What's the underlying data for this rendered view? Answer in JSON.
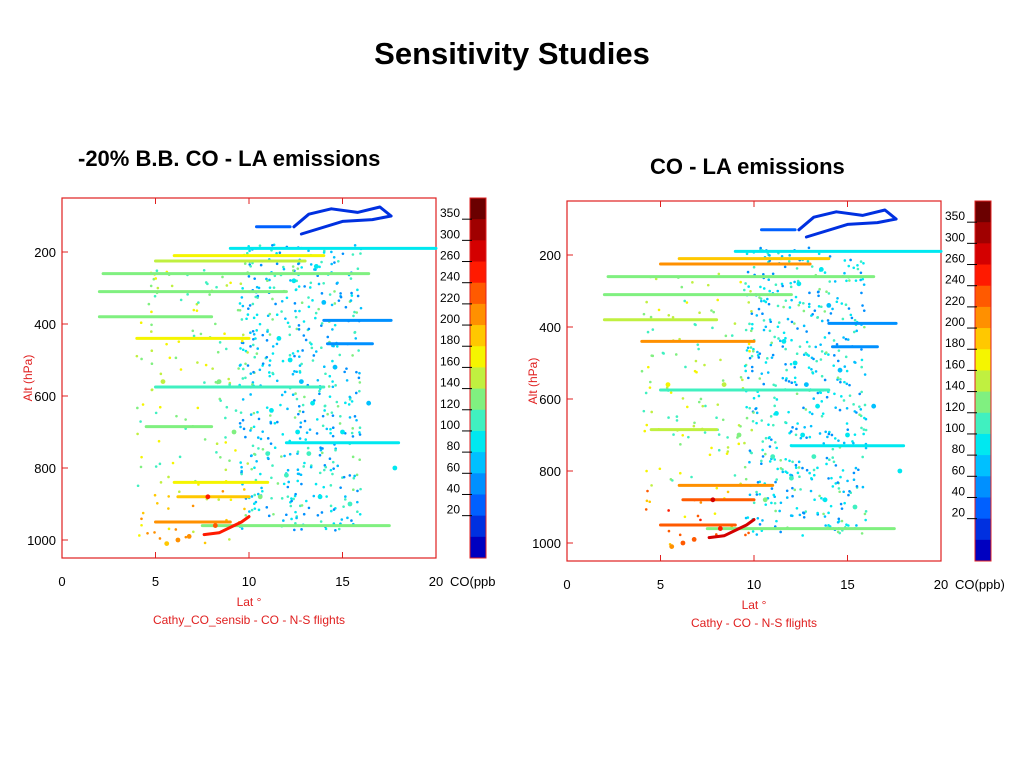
{
  "slide": {
    "title": "Sensitivity Studies"
  },
  "colors": {
    "axis": "#e02020",
    "ink": "#000000"
  },
  "colorbar": {
    "labels": [
      "350",
      "300",
      "260",
      "240",
      "220",
      "200",
      "180",
      "160",
      "140",
      "120",
      "100",
      "80",
      "60",
      "40",
      "20"
    ],
    "bands": [
      "#6b0000",
      "#a00000",
      "#d40000",
      "#ff1a00",
      "#ff5a00",
      "#ff9000",
      "#ffc800",
      "#f5f500",
      "#c0f040",
      "#80f080",
      "#40f0c0",
      "#00e8f0",
      "#00c0ff",
      "#0090ff",
      "#0060ff",
      "#0030e0",
      "#0000c0"
    ]
  },
  "chart_data": [
    {
      "type": "scatter",
      "panel_title": "-20% B.B. CO - LA emissions",
      "xlabel": "Lat °",
      "ylabel": "Alt (hPa)",
      "caption": "Cathy_CO_sensib - CO  -   N-S flights",
      "colorbar_title": "CO(ppb",
      "x_range": [
        0,
        20
      ],
      "y_range": [
        1050,
        50
      ],
      "x_ticks": [
        0,
        5,
        10,
        15,
        20
      ],
      "y_ticks": [
        200,
        400,
        600,
        800,
        1000
      ],
      "z_ticks": [
        20,
        40,
        60,
        80,
        100,
        120,
        140,
        160,
        180,
        200,
        220,
        240,
        260,
        300,
        350
      ],
      "segments": [
        {
          "x": [
            12.4,
            13.2,
            14.4,
            15.8,
            17.0,
            17.6,
            16.6,
            15.0,
            12.8
          ],
          "y": [
            130,
            95,
            80,
            90,
            75,
            100,
            110,
            115,
            150
          ],
          "co": 20
        },
        {
          "x": [
            10.4,
            12.2
          ],
          "y": [
            130,
            130
          ],
          "co": 40
        },
        {
          "x": [
            9.0,
            20.0
          ],
          "y": [
            190,
            190
          ],
          "co": 100
        },
        {
          "x": [
            6.0,
            14.0
          ],
          "y": [
            210,
            210
          ],
          "co": 190
        },
        {
          "x": [
            5.0,
            13.0
          ],
          "y": [
            225,
            225
          ],
          "co": 160
        },
        {
          "x": [
            2.2,
            16.4
          ],
          "y": [
            260,
            260
          ],
          "co": 140
        },
        {
          "x": [
            2.0,
            12.0
          ],
          "y": [
            310,
            310
          ],
          "co": 140
        },
        {
          "x": [
            2.0,
            8.0
          ],
          "y": [
            380,
            380
          ],
          "co": 150
        },
        {
          "x": [
            14.0,
            17.6
          ],
          "y": [
            390,
            390
          ],
          "co": 60
        },
        {
          "x": [
            4.0,
            10.0
          ],
          "y": [
            440,
            440
          ],
          "co": 195
        },
        {
          "x": [
            14.2,
            16.6
          ],
          "y": [
            455,
            455
          ],
          "co": 60
        },
        {
          "x": [
            5.0,
            14.0
          ],
          "y": [
            575,
            575
          ],
          "co": 120
        },
        {
          "x": [
            4.5,
            8.0
          ],
          "y": [
            685,
            685
          ],
          "co": 150
        },
        {
          "x": [
            12.0,
            18.0
          ],
          "y": [
            730,
            730
          ],
          "co": 100
        },
        {
          "x": [
            6.0,
            11.0
          ],
          "y": [
            840,
            840
          ],
          "co": 190
        },
        {
          "x": [
            6.2,
            10.0
          ],
          "y": [
            880,
            880
          ],
          "co": 200
        },
        {
          "x": [
            5.0,
            9.0
          ],
          "y": [
            950,
            950
          ],
          "co": 220
        },
        {
          "x": [
            7.5,
            17.5
          ],
          "y": [
            960,
            960
          ],
          "co": 150
        },
        {
          "x": [
            7.6,
            8.4,
            9.0,
            9.6,
            10.0
          ],
          "y": [
            985,
            980,
            965,
            950,
            935
          ],
          "co": 260
        }
      ],
      "points": [
        {
          "x": 12.2,
          "y": 500,
          "co": 100
        },
        {
          "x": 12.8,
          "y": 560,
          "co": 90
        },
        {
          "x": 13.4,
          "y": 620,
          "co": 110
        },
        {
          "x": 12.6,
          "y": 700,
          "co": 100
        },
        {
          "x": 13.2,
          "y": 760,
          "co": 120
        },
        {
          "x": 12.0,
          "y": 820,
          "co": 120
        },
        {
          "x": 13.8,
          "y": 880,
          "co": 100
        },
        {
          "x": 11.6,
          "y": 440,
          "co": 100
        },
        {
          "x": 14.0,
          "y": 340,
          "co": 90
        },
        {
          "x": 12.4,
          "y": 280,
          "co": 100
        },
        {
          "x": 13.6,
          "y": 240,
          "co": 100
        },
        {
          "x": 14.6,
          "y": 520,
          "co": 80
        },
        {
          "x": 11.2,
          "y": 640,
          "co": 110
        },
        {
          "x": 11.0,
          "y": 760,
          "co": 130
        },
        {
          "x": 10.6,
          "y": 880,
          "co": 140
        },
        {
          "x": 6.2,
          "y": 1000,
          "co": 220
        },
        {
          "x": 5.6,
          "y": 1010,
          "co": 210
        },
        {
          "x": 6.8,
          "y": 990,
          "co": 220
        },
        {
          "x": 7.8,
          "y": 880,
          "co": 260
        },
        {
          "x": 8.2,
          "y": 960,
          "co": 240
        },
        {
          "x": 9.2,
          "y": 700,
          "co": 140
        },
        {
          "x": 8.4,
          "y": 560,
          "co": 150
        },
        {
          "x": 5.4,
          "y": 560,
          "co": 160
        },
        {
          "x": 16.4,
          "y": 620,
          "co": 90
        },
        {
          "x": 17.8,
          "y": 800,
          "co": 100
        },
        {
          "x": 15.4,
          "y": 900,
          "co": 120
        },
        {
          "x": 15.0,
          "y": 700,
          "co": 100
        }
      ]
    },
    {
      "type": "scatter",
      "panel_title": "CO - LA emissions",
      "xlabel": "Lat °",
      "ylabel": "Alt (hPa)",
      "caption": "Cathy - CO  -   N-S flights",
      "colorbar_title": "CO(ppb)",
      "x_range": [
        0,
        20
      ],
      "y_range": [
        1050,
        50
      ],
      "x_ticks": [
        0,
        5,
        10,
        15,
        20
      ],
      "y_ticks": [
        200,
        400,
        600,
        800,
        1000
      ],
      "z_ticks": [
        20,
        40,
        60,
        80,
        100,
        120,
        140,
        160,
        180,
        200,
        220,
        240,
        260,
        300,
        350
      ],
      "segments": [
        {
          "x": [
            12.4,
            13.2,
            14.4,
            15.8,
            17.0,
            17.6,
            16.6,
            15.0,
            12.8
          ],
          "y": [
            130,
            95,
            80,
            90,
            75,
            100,
            110,
            115,
            150
          ],
          "co": 20
        },
        {
          "x": [
            10.4,
            12.2
          ],
          "y": [
            130,
            130
          ],
          "co": 40
        },
        {
          "x": [
            9.0,
            20.0
          ],
          "y": [
            190,
            190
          ],
          "co": 100
        },
        {
          "x": [
            6.0,
            14.0
          ],
          "y": [
            210,
            210
          ],
          "co": 210
        },
        {
          "x": [
            5.0,
            13.0
          ],
          "y": [
            225,
            225
          ],
          "co": 230
        },
        {
          "x": [
            2.2,
            16.4
          ],
          "y": [
            260,
            260
          ],
          "co": 150
        },
        {
          "x": [
            2.0,
            12.0
          ],
          "y": [
            310,
            310
          ],
          "co": 150
        },
        {
          "x": [
            2.0,
            8.0
          ],
          "y": [
            380,
            380
          ],
          "co": 160
        },
        {
          "x": [
            14.0,
            17.6
          ],
          "y": [
            390,
            390
          ],
          "co": 60
        },
        {
          "x": [
            4.0,
            10.0
          ],
          "y": [
            440,
            440
          ],
          "co": 225
        },
        {
          "x": [
            14.2,
            16.6
          ],
          "y": [
            455,
            455
          ],
          "co": 60
        },
        {
          "x": [
            5.0,
            14.0
          ],
          "y": [
            575,
            575
          ],
          "co": 120
        },
        {
          "x": [
            4.5,
            8.0
          ],
          "y": [
            685,
            685
          ],
          "co": 160
        },
        {
          "x": [
            12.0,
            18.0
          ],
          "y": [
            730,
            730
          ],
          "co": 100
        },
        {
          "x": [
            6.0,
            11.0
          ],
          "y": [
            840,
            840
          ],
          "co": 230
        },
        {
          "x": [
            6.2,
            10.0
          ],
          "y": [
            880,
            880
          ],
          "co": 240
        },
        {
          "x": [
            5.0,
            9.0
          ],
          "y": [
            950,
            950
          ],
          "co": 240
        },
        {
          "x": [
            7.5,
            17.5
          ],
          "y": [
            960,
            960
          ],
          "co": 150
        },
        {
          "x": [
            7.6,
            8.4,
            9.0,
            9.6,
            10.0
          ],
          "y": [
            985,
            980,
            965,
            950,
            935
          ],
          "co": 300
        }
      ],
      "points": [
        {
          "x": 12.2,
          "y": 500,
          "co": 100
        },
        {
          "x": 12.8,
          "y": 560,
          "co": 90
        },
        {
          "x": 13.4,
          "y": 620,
          "co": 110
        },
        {
          "x": 12.6,
          "y": 700,
          "co": 100
        },
        {
          "x": 13.2,
          "y": 760,
          "co": 120
        },
        {
          "x": 12.0,
          "y": 820,
          "co": 120
        },
        {
          "x": 13.8,
          "y": 880,
          "co": 100
        },
        {
          "x": 11.6,
          "y": 440,
          "co": 100
        },
        {
          "x": 14.0,
          "y": 340,
          "co": 90
        },
        {
          "x": 12.4,
          "y": 280,
          "co": 100
        },
        {
          "x": 13.6,
          "y": 240,
          "co": 100
        },
        {
          "x": 14.6,
          "y": 520,
          "co": 80
        },
        {
          "x": 11.2,
          "y": 640,
          "co": 110
        },
        {
          "x": 11.0,
          "y": 760,
          "co": 130
        },
        {
          "x": 10.6,
          "y": 880,
          "co": 140
        },
        {
          "x": 6.2,
          "y": 1000,
          "co": 240
        },
        {
          "x": 5.6,
          "y": 1010,
          "co": 230
        },
        {
          "x": 6.8,
          "y": 990,
          "co": 240
        },
        {
          "x": 7.8,
          "y": 880,
          "co": 300
        },
        {
          "x": 8.2,
          "y": 960,
          "co": 260
        },
        {
          "x": 9.2,
          "y": 700,
          "co": 150
        },
        {
          "x": 8.4,
          "y": 560,
          "co": 160
        },
        {
          "x": 5.4,
          "y": 560,
          "co": 180
        },
        {
          "x": 16.4,
          "y": 620,
          "co": 90
        },
        {
          "x": 17.8,
          "y": 800,
          "co": 100
        },
        {
          "x": 15.4,
          "y": 900,
          "co": 120
        },
        {
          "x": 15.0,
          "y": 700,
          "co": 100
        }
      ]
    }
  ]
}
